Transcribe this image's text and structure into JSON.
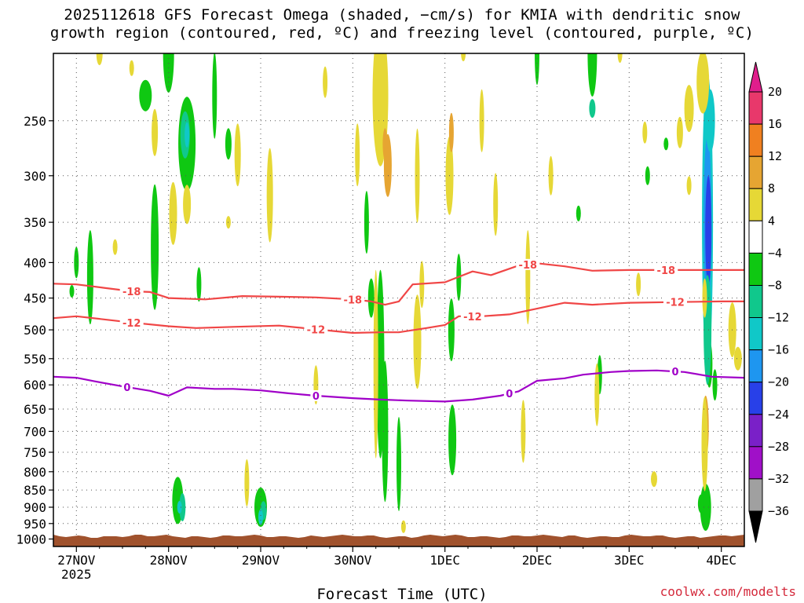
{
  "chart_data": {
    "type": "heatmap",
    "title_line1": "2025112618 GFS Forecast Omega (shaded, −cm/s) for KMIA with dendritic snow",
    "title_line2": "growth region (contoured, red, ºC) and freezing level (contoured, purple, ºC)",
    "xlabel": "Forecast Time (UTC)",
    "ylabel": "",
    "x_ticks": [
      "27NOV",
      "28NOV",
      "29NOV",
      "30NOV",
      "1DEC",
      "2DEC",
      "3DEC",
      "4DEC"
    ],
    "x_tick_year": "2025",
    "x_range_days": [
      -0.25,
      7.25
    ],
    "y_range_hpa": [
      200,
      1025
    ],
    "y_ticks": [
      250,
      300,
      350,
      400,
      450,
      500,
      550,
      600,
      650,
      700,
      750,
      800,
      850,
      900,
      950,
      1000
    ],
    "colorbar": {
      "labels": [
        "20",
        "16",
        "12",
        "8",
        "4",
        "−4",
        "−8",
        "−12",
        "−16",
        "−20",
        "−24",
        "−28",
        "−32",
        "−36"
      ],
      "colors": [
        "#e8386b",
        "#f08020",
        "#e6a532",
        "#e6d836",
        "#ffffff",
        "#0fc812",
        "#10c88c",
        "#10c8c8",
        "#1e96f0",
        "#2840e8",
        "#7a20c8",
        "#a010c8",
        "#a0a0a0"
      ],
      "top_arrow": "#e01e8c",
      "bottom_arrow": "#000000"
    },
    "contours": [
      {
        "label": "-18",
        "color": "#f04646",
        "points": [
          [
            -0.25,
            429
          ],
          [
            0,
            430
          ],
          [
            0.3,
            435
          ],
          [
            0.6,
            440
          ],
          [
            0.8,
            441
          ],
          [
            1,
            450
          ],
          [
            1.4,
            452
          ],
          [
            1.8,
            447
          ],
          [
            2.2,
            448
          ],
          [
            2.6,
            449
          ],
          [
            3,
            452
          ],
          [
            3.2,
            455
          ],
          [
            3.35,
            460
          ],
          [
            3.5,
            455
          ],
          [
            3.65,
            430
          ],
          [
            4,
            427
          ],
          [
            4.3,
            412
          ],
          [
            4.5,
            417
          ],
          [
            4.8,
            404
          ],
          [
            5,
            401
          ],
          [
            5.3,
            405
          ],
          [
            5.6,
            411
          ],
          [
            6,
            410
          ],
          [
            6.5,
            410
          ],
          [
            7,
            410
          ],
          [
            7.25,
            410
          ]
        ],
        "label_at": [
          0.6,
          3.0,
          4.9,
          6.4
        ]
      },
      {
        "label": "-12",
        "color": "#f04646",
        "points": [
          [
            -0.25,
            481
          ],
          [
            0,
            478
          ],
          [
            0.3,
            483
          ],
          [
            0.6,
            488
          ],
          [
            1,
            494
          ],
          [
            1.3,
            497
          ],
          [
            1.7,
            495
          ],
          [
            2.2,
            493
          ],
          [
            2.6,
            499
          ],
          [
            3,
            505
          ],
          [
            3.3,
            504
          ],
          [
            3.5,
            504
          ],
          [
            3.8,
            497
          ],
          [
            4,
            492
          ],
          [
            4.15,
            478
          ],
          [
            4.4,
            478
          ],
          [
            4.7,
            475
          ],
          [
            5,
            466
          ],
          [
            5.3,
            457
          ],
          [
            5.6,
            460
          ],
          [
            6,
            457
          ],
          [
            6.5,
            456
          ],
          [
            7,
            455
          ],
          [
            7.25,
            455
          ]
        ],
        "label_at": [
          0.6,
          2.6,
          4.3,
          6.5
        ]
      },
      {
        "label": "0",
        "color": "#a000c8",
        "points": [
          [
            -0.25,
            584
          ],
          [
            0,
            586
          ],
          [
            0.2,
            593
          ],
          [
            0.5,
            603
          ],
          [
            0.8,
            612
          ],
          [
            1,
            622
          ],
          [
            1.2,
            605
          ],
          [
            1.5,
            608
          ],
          [
            1.7,
            608
          ],
          [
            2,
            611
          ],
          [
            2.3,
            617
          ],
          [
            2.6,
            622
          ],
          [
            3,
            627
          ],
          [
            3.3,
            630
          ],
          [
            3.6,
            632
          ],
          [
            4,
            634
          ],
          [
            4.3,
            630
          ],
          [
            4.6,
            622
          ],
          [
            4.8,
            613
          ],
          [
            5,
            592
          ],
          [
            5.3,
            587
          ],
          [
            5.5,
            580
          ],
          [
            5.8,
            575
          ],
          [
            6,
            573
          ],
          [
            6.3,
            572
          ],
          [
            6.6,
            575
          ],
          [
            6.9,
            584
          ],
          [
            7.25,
            586
          ]
        ],
        "label_at": [
          0.55,
          2.6,
          4.7,
          6.5
        ]
      }
    ]
  },
  "credit": "coolwx.com/modelts"
}
